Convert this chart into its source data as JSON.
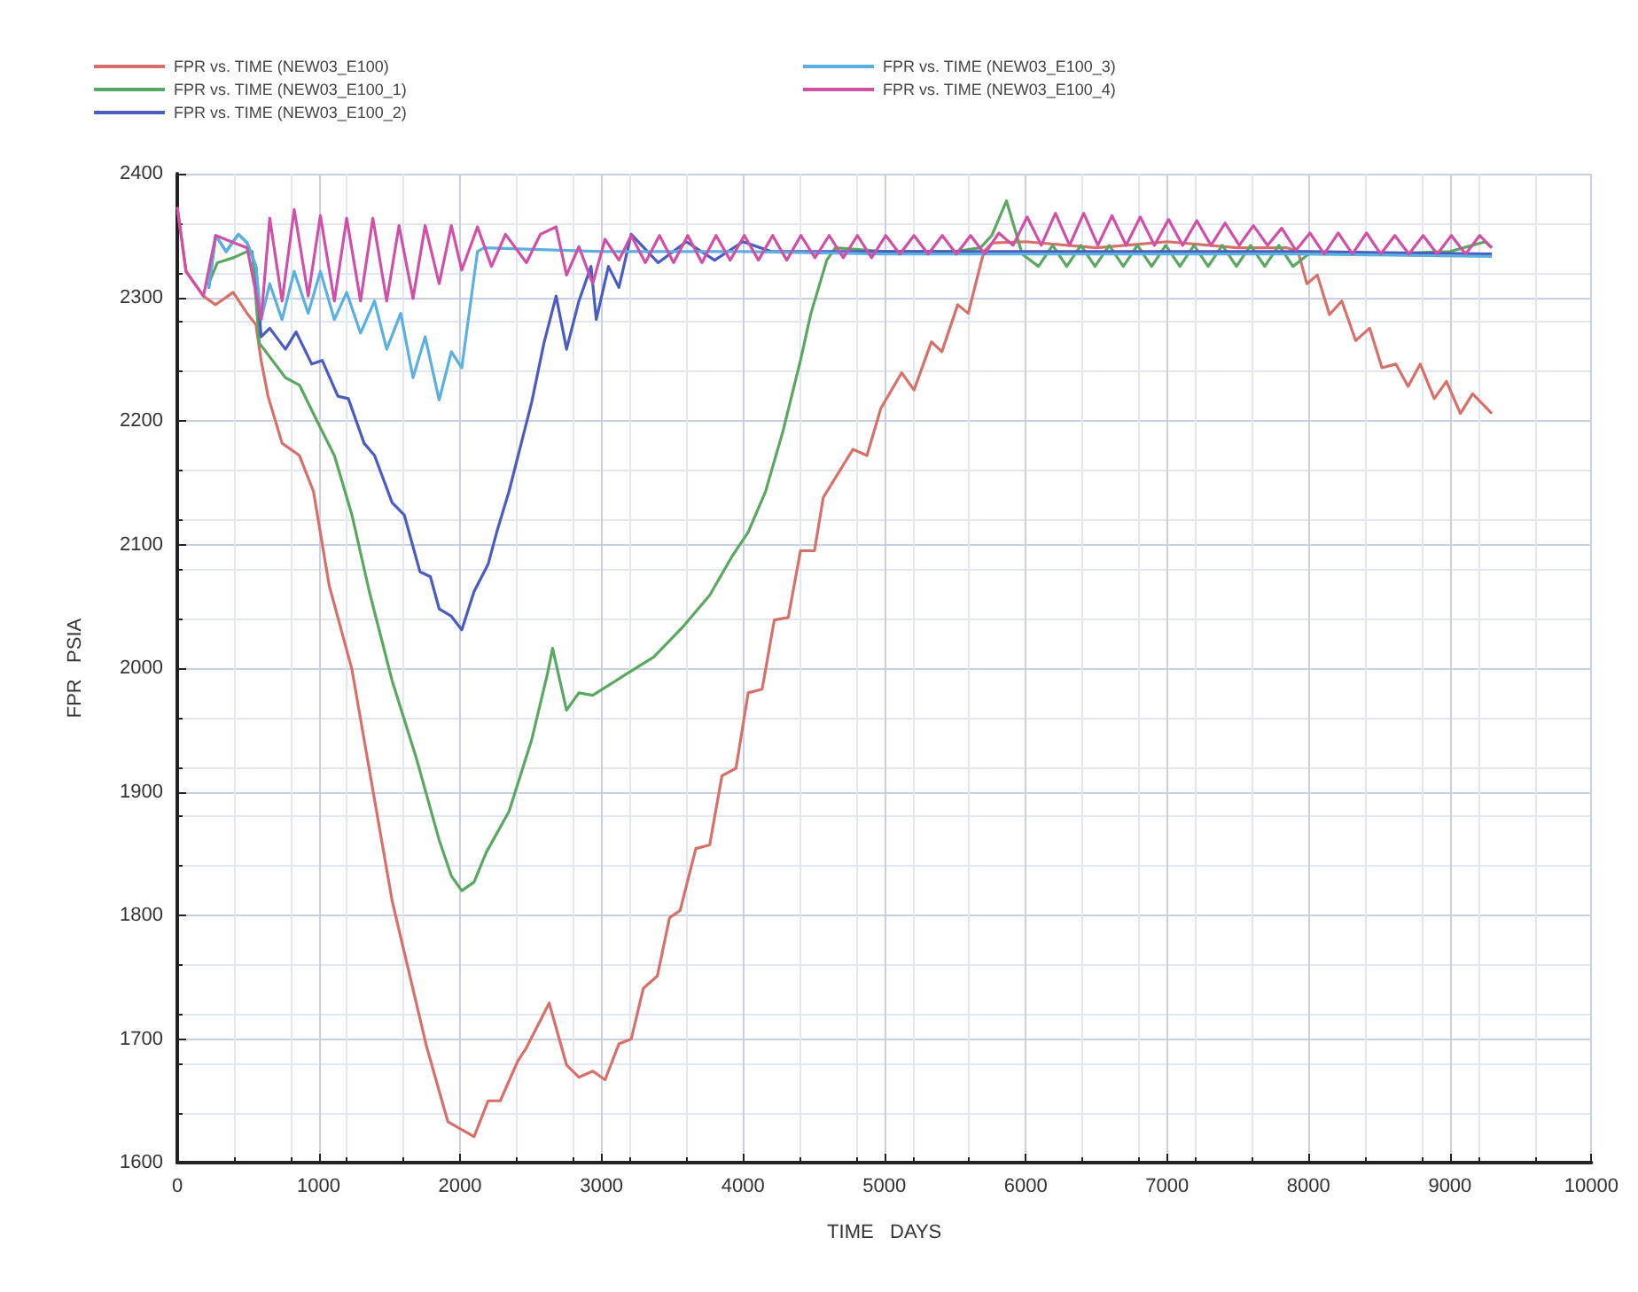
{
  "chart_data": {
    "type": "line",
    "xlabel": "TIME   DAYS",
    "ylabel": "FPR   PSIA",
    "xlim": [
      0,
      10000
    ],
    "xticks": [
      0,
      1000,
      2000,
      3000,
      4000,
      5000,
      6000,
      7000,
      8000,
      9000,
      10000
    ],
    "ylim": [
      1600,
      2400
    ],
    "yticks": [
      1600,
      1700,
      1800,
      1900,
      2000,
      2100,
      2200,
      2300,
      2400
    ],
    "grid": true,
    "legend": "top",
    "marker": "none",
    "line_style": "solid",
    "series": [
      {
        "name": "FPR vs. TIME (NEW03_E100)",
        "color": "#d8706a",
        "x": [
          0,
          62,
          185,
          270,
          395,
          494,
          556,
          593,
          642,
          741,
          864,
          963,
          1074,
          1235,
          1519,
          1765,
          1914,
          2099,
          2198,
          2284,
          2407,
          2469,
          2630,
          2753,
          2840,
          2938,
          3025,
          3123,
          3210,
          3296,
          3395,
          3481,
          3556,
          3667,
          3765,
          3852,
          3951,
          4037,
          4136,
          4222,
          4321,
          4407,
          4506,
          4568,
          4778,
          4877,
          4975,
          5123,
          5210,
          5333,
          5407,
          5519,
          5593,
          5704,
          5765,
          6000,
          6500,
          7000,
          7500,
          7850,
          7926,
          7988,
          8062,
          8148,
          8235,
          8333,
          8432,
          8519,
          8617,
          8704,
          8790,
          8889,
          8975,
          9074,
          9160,
          9296
        ],
        "values": [
          2373,
          2321,
          2301,
          2294,
          2304,
          2287,
          2278,
          2249,
          2220,
          2182,
          2172,
          2143,
          2067,
          1999,
          1812,
          1693,
          1633,
          1621,
          1650,
          1650,
          1682,
          1693,
          1729,
          1679,
          1669,
          1674,
          1667,
          1696,
          1700,
          1741,
          1751,
          1798,
          1804,
          1854,
          1857,
          1913,
          1919,
          1980,
          1983,
          2039,
          2041,
          2095,
          2095,
          2138,
          2177,
          2172,
          2210,
          2239,
          2225,
          2264,
          2256,
          2294,
          2287,
          2337,
          2344,
          2345,
          2340,
          2345,
          2340,
          2340,
          2337,
          2311,
          2318,
          2286,
          2297,
          2265,
          2275,
          2243,
          2246,
          2228,
          2246,
          2218,
          2232,
          2206,
          2222,
          2206
        ]
      },
      {
        "name": "FPR vs. TIME (NEW03_E100_1)",
        "color": "#5aa860",
        "x": [
          222,
          284,
          395,
          494,
          530,
          580,
          765,
          864,
          988,
          1111,
          1235,
          1358,
          1519,
          1691,
          1852,
          1938,
          2012,
          2099,
          2185,
          2346,
          2506,
          2617,
          2654,
          2753,
          2840,
          2938,
          3173,
          3370,
          3580,
          3765,
          3926,
          4037,
          4160,
          4284,
          4407,
          4481,
          4593,
          4654,
          5000,
          5500,
          5679,
          5760,
          5864,
          5975,
          6090,
          6190,
          6290,
          6390,
          6490,
          6590,
          6690,
          6790,
          6890,
          6990,
          7090,
          7190,
          7290,
          7390,
          7490,
          7590,
          7690,
          7790,
          7890,
          8000,
          8500,
          9000,
          9250,
          9296
        ],
        "values": [
          2311,
          2328,
          2332,
          2337,
          2337,
          2263,
          2235,
          2229,
          2200,
          2172,
          2124,
          2062,
          1990,
          1927,
          1861,
          1832,
          1820,
          1827,
          1851,
          1884,
          1942,
          1995,
          2016,
          1966,
          1980,
          1978,
          1995,
          2009,
          2034,
          2059,
          2091,
          2110,
          2143,
          2192,
          2249,
          2287,
          2330,
          2340,
          2337,
          2337,
          2340,
          2350,
          2378,
          2335,
          2325,
          2342,
          2325,
          2342,
          2325,
          2342,
          2325,
          2342,
          2325,
          2342,
          2325,
          2342,
          2325,
          2342,
          2325,
          2342,
          2325,
          2342,
          2325,
          2335,
          2335,
          2337,
          2345,
          2340
        ]
      },
      {
        "name": "FPR vs. TIME (NEW03_E100_2)",
        "color": "#4a5cc0",
        "x": [
          222,
          272,
          346,
          432,
          494,
          556,
          593,
          654,
          765,
          840,
          951,
          1025,
          1136,
          1210,
          1321,
          1395,
          1519,
          1605,
          1716,
          1790,
          1852,
          1938,
          2012,
          2099,
          2198,
          2259,
          2346,
          2506,
          2593,
          2679,
          2753,
          2840,
          2926,
          2963,
          3049,
          3123,
          3210,
          3400,
          3600,
          3800,
          4000,
          4200,
          5000,
          6000,
          7000,
          8000,
          9296
        ],
        "values": [
          2307,
          2350,
          2337,
          2351,
          2344,
          2325,
          2268,
          2275,
          2258,
          2272,
          2246,
          2249,
          2220,
          2218,
          2182,
          2172,
          2134,
          2124,
          2078,
          2074,
          2048,
          2042,
          2031,
          2062,
          2084,
          2110,
          2143,
          2215,
          2263,
          2301,
          2258,
          2297,
          2325,
          2282,
          2325,
          2308,
          2351,
          2328,
          2345,
          2330,
          2345,
          2337,
          2337,
          2337,
          2337,
          2337,
          2335
        ]
      },
      {
        "name": "FPR vs. TIME (NEW03_E100_3)",
        "color": "#5ab0e0",
        "x": [
          222,
          272,
          346,
          432,
          494,
          556,
          593,
          654,
          741,
          827,
          926,
          1012,
          1111,
          1198,
          1296,
          1395,
          1481,
          1580,
          1667,
          1753,
          1852,
          1938,
          2012,
          2123,
          2170,
          3000,
          4000,
          5000,
          6000,
          7000,
          8000,
          9296
        ],
        "values": [
          2307,
          2350,
          2337,
          2351,
          2344,
          2325,
          2282,
          2311,
          2282,
          2321,
          2287,
          2321,
          2282,
          2304,
          2271,
          2297,
          2258,
          2287,
          2235,
          2268,
          2217,
          2256,
          2243,
          2337,
          2340,
          2337,
          2337,
          2335,
          2335,
          2335,
          2335,
          2333
        ]
      },
      {
        "name": "FPR vs. TIME (NEW03_E100_4)",
        "color": "#d050a8",
        "x": [
          0,
          62,
          185,
          272,
          494,
          593,
          654,
          741,
          827,
          926,
          1012,
          1111,
          1198,
          1296,
          1383,
          1481,
          1568,
          1667,
          1753,
          1852,
          1938,
          2012,
          2123,
          2222,
          2321,
          2469,
          2568,
          2679,
          2753,
          2840,
          2938,
          3025,
          3123,
          3210,
          3310,
          3410,
          3510,
          3610,
          3710,
          3810,
          3910,
          4010,
          4110,
          4210,
          4310,
          4410,
          4510,
          4610,
          4710,
          4810,
          4910,
          5010,
          5110,
          5210,
          5310,
          5410,
          5510,
          5610,
          5710,
          5810,
          5910,
          6010,
          6110,
          6210,
          6310,
          6410,
          6510,
          6610,
          6710,
          6810,
          6910,
          7010,
          7110,
          7210,
          7310,
          7410,
          7510,
          7610,
          7710,
          7810,
          7910,
          8010,
          8110,
          8210,
          8310,
          8410,
          8510,
          8610,
          8710,
          8810,
          8910,
          9010,
          9110,
          9210,
          9296
        ],
        "values": [
          2373,
          2321,
          2301,
          2350,
          2340,
          2282,
          2364,
          2297,
          2371,
          2301,
          2366,
          2297,
          2364,
          2297,
          2364,
          2297,
          2358,
          2299,
          2358,
          2311,
          2358,
          2322,
          2357,
          2325,
          2351,
          2328,
          2351,
          2357,
          2318,
          2341,
          2311,
          2347,
          2330,
          2350,
          2328,
          2350,
          2328,
          2350,
          2328,
          2350,
          2330,
          2350,
          2330,
          2350,
          2330,
          2350,
          2332,
          2350,
          2332,
          2350,
          2332,
          2350,
          2335,
          2350,
          2335,
          2350,
          2335,
          2350,
          2335,
          2352,
          2342,
          2365,
          2342,
          2368,
          2342,
          2368,
          2342,
          2366,
          2342,
          2365,
          2342,
          2363,
          2342,
          2362,
          2342,
          2360,
          2342,
          2358,
          2342,
          2356,
          2338,
          2352,
          2335,
          2352,
          2335,
          2352,
          2335,
          2350,
          2335,
          2350,
          2335,
          2350,
          2335,
          2350,
          2340
        ]
      }
    ]
  }
}
